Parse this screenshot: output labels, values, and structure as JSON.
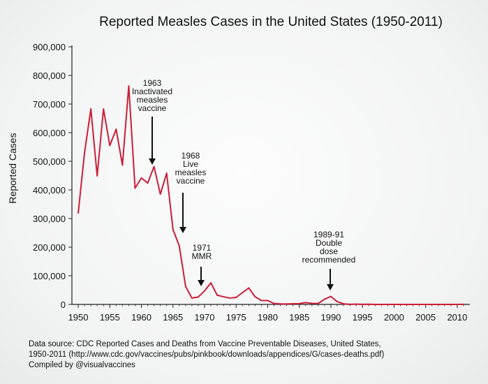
{
  "chart_data": {
    "type": "line",
    "title": "Reported Measles Cases in the United States (1950-2011)",
    "xlabel": "",
    "ylabel": "Reported Cases",
    "xlim": [
      1949,
      2012
    ],
    "ylim": [
      0,
      900000
    ],
    "x_ticks": [
      1950,
      1955,
      1960,
      1965,
      1970,
      1975,
      1980,
      1985,
      1990,
      1995,
      2000,
      2005,
      2010
    ],
    "y_ticks": [
      0,
      100000,
      200000,
      300000,
      400000,
      500000,
      600000,
      700000,
      800000,
      900000
    ],
    "y_tick_labels": [
      "0",
      "100,000",
      "200,000",
      "300,000",
      "400,000",
      "500,000",
      "600,000",
      "700,000",
      "800,000",
      "900,000"
    ],
    "grid": false,
    "line_color": "#cc1e3a",
    "series": [
      {
        "name": "",
        "x": [
          1950,
          1951,
          1952,
          1953,
          1954,
          1955,
          1956,
          1957,
          1958,
          1959,
          1960,
          1961,
          1962,
          1963,
          1964,
          1965,
          1966,
          1967,
          1968,
          1969,
          1970,
          1971,
          1972,
          1973,
          1974,
          1975,
          1976,
          1977,
          1978,
          1979,
          1980,
          1981,
          1982,
          1983,
          1984,
          1985,
          1986,
          1987,
          1988,
          1989,
          1990,
          1991,
          1992,
          1993,
          1994,
          1995,
          1996,
          1997,
          1998,
          1999,
          2000,
          2001,
          2002,
          2003,
          2004,
          2005,
          2006,
          2007,
          2008,
          2009,
          2010,
          2011
        ],
        "values": [
          319124,
          530118,
          683077,
          449146,
          682720,
          555156,
          611936,
          486799,
          763094,
          406162,
          441703,
          423919,
          481530,
          385156,
          458083,
          261904,
          204136,
          62705,
          22231,
          25826,
          47351,
          75290,
          32275,
          26690,
          22094,
          24374,
          41126,
          57345,
          26871,
          13597,
          13506,
          3124,
          1714,
          1497,
          2587,
          2822,
          6282,
          3655,
          3396,
          18193,
          27786,
          9643,
          2237,
          312,
          963,
          309,
          508,
          138,
          100,
          100,
          86,
          116,
          44,
          56,
          37,
          66,
          55,
          43,
          140,
          71,
          63,
          220
        ]
      }
    ],
    "annotations": [
      {
        "id": "1963",
        "lines": [
          "1963",
          "Inactivated",
          "measles",
          "vaccine"
        ],
        "x": 1962,
        "y": 480000
      },
      {
        "id": "1968",
        "lines": [
          "1968",
          "Live",
          "measles",
          "vaccine"
        ],
        "x": 1967,
        "y": 240000
      },
      {
        "id": "1971",
        "lines": [
          "1971",
          "MMR"
        ],
        "x": 1969.8,
        "y": 50000
      },
      {
        "id": "1989",
        "lines": [
          "1989-91",
          "Double",
          "dose",
          "recommended"
        ],
        "x": 1989.6,
        "y": 42000
      }
    ]
  },
  "source": {
    "line1": "Data source: CDC Reported Cases and Deaths from Vaccine Preventable Diseases, United States,",
    "line2": "1950-2011 (http://www.cdc.gov/vaccines/pubs/pinkbook/downloads/appendices/G/cases-deaths.pdf)",
    "line3": "Compiled by @visualvaccines"
  }
}
